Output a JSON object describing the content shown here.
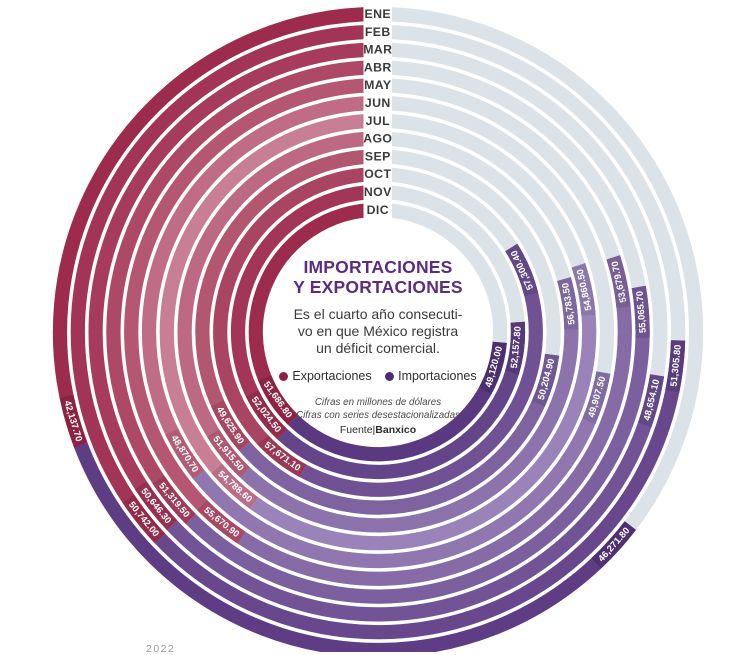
{
  "title": {
    "line1": "IMPORTACIONES",
    "line2": "Y EXPORTACIONES"
  },
  "subtitle": [
    "Es el cuarto año consecuti-",
    "vo en que México registra",
    "un déficit comercial."
  ],
  "legend": {
    "items": [
      {
        "label": "Exportaciones"
      },
      {
        "label": "Importaciones"
      }
    ]
  },
  "notes": [
    "Cifras en millones de dólares",
    "Cifras con series desestacionalizadas"
  ],
  "source": {
    "prefix": "Fuente|",
    "name": "Banxico"
  },
  "cutoff_label": "2022",
  "colors": {
    "title": "#5b2c82",
    "track": "#dce3e8",
    "month_label": "#3b3b3b",
    "export_dot": "#8e2045",
    "import_dot": "#4f2d7c",
    "export_band": [
      "#9c2b4e",
      "#a23457",
      "#a63b5d",
      "#ad4867",
      "#b55673",
      "#c06c86",
      "#c87f96",
      "#bd6983",
      "#b35670",
      "#aa4463",
      "#a23558",
      "#9c2b4e"
    ],
    "export_chip": [
      "#8d2342",
      "#932b4a",
      "#973050",
      "#9d3b58",
      "#a64a66",
      "#b15d77",
      "#b96f88",
      "#ae5a74",
      "#a44862",
      "#9b3855",
      "#932c4b",
      "#8d2342"
    ],
    "import_band": [
      "#5e3d84",
      "#68478c",
      "#725395",
      "#7c5f9e",
      "#866ba6",
      "#9077af",
      "#9a83b8",
      "#8c73ab",
      "#7e63a0",
      "#705294",
      "#644589",
      "#5a3980"
    ],
    "import_chip": [
      "#4f3172",
      "#593c7b",
      "#634884",
      "#6d548d",
      "#776096",
      "#816c9f",
      "#8b78a8",
      "#7d689c",
      "#6f5890",
      "#614784",
      "#553a79",
      "#4c2f6e"
    ]
  },
  "chart_data": {
    "type": "radial-bar",
    "unit": "millones de dólares",
    "months": [
      "ENE",
      "FEB",
      "MAR",
      "ABR",
      "MAY",
      "JUN",
      "JUL",
      "AGO",
      "SEP",
      "OCT",
      "NOV",
      "DIC"
    ],
    "series": [
      {
        "name": "Exportaciones",
        "values": [
          42137.7,
          50742.0,
          50646.3,
          51319.5,
          55670.9,
          48870.7,
          54788.6,
          51915.5,
          49625.9,
          57671.1,
          52024.5,
          51686.8
        ],
        "labels": [
          "42,137.70",
          "50,742.00",
          "50,646.30",
          "51,319.50",
          "55,670.90",
          "48,870.70",
          "54,788.60",
          "51,915.50",
          "49,625.90",
          "57,671.10",
          "52,024.50",
          "51,686.80"
        ]
      },
      {
        "name": "Importaciones",
        "values": [
          46271.8,
          51305.8,
          48654.1,
          55065.7,
          53679.7,
          49907.5,
          54860.5,
          56783.5,
          50204.9,
          57300.4,
          52157.8,
          49120.0
        ],
        "labels": [
          "46,271.80",
          "51,305.80",
          "48,654.10",
          "55,065.70",
          "53,679.70",
          "49,907.50",
          "54,860.50",
          "56,783.50",
          "50,204.90",
          "57,300.40",
          "52,157.80",
          "49,120.00"
        ]
      }
    ],
    "layout": {
      "direction": "exports counterclockwise from 12 o'clock, imports continue, gray track remainder",
      "outer_ring": "ENE",
      "inner_ring": "DIC"
    },
    "scale_deg_per_unit": 0.00263
  }
}
